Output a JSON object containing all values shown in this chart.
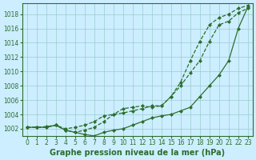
{
  "xlabel": "Graphe pression niveau de la mer (hPa)",
  "bg_color": "#cceeff",
  "grid_color": "#99cccc",
  "line_color": "#2d6e2d",
  "xlim": [
    -0.5,
    23.5
  ],
  "ylim": [
    1001.0,
    1019.5
  ],
  "xticks": [
    0,
    1,
    2,
    3,
    4,
    5,
    6,
    7,
    8,
    9,
    10,
    11,
    12,
    13,
    14,
    15,
    16,
    17,
    18,
    19,
    20,
    21,
    22,
    23
  ],
  "yticks": [
    1002,
    1004,
    1006,
    1008,
    1010,
    1012,
    1014,
    1016,
    1018
  ],
  "series": [
    {
      "x": [
        0,
        1,
        2,
        3,
        4,
        5,
        6,
        7,
        8,
        9,
        10,
        11,
        12,
        13,
        14,
        15,
        16,
        17,
        18,
        19,
        20,
        21,
        22,
        23
      ],
      "y": [
        1002.2,
        1002.2,
        1002.2,
        1002.5,
        1001.8,
        1001.5,
        1001.2,
        1001.0,
        1001.5,
        1001.8,
        1002.0,
        1002.5,
        1003.0,
        1003.5,
        1003.8,
        1004.0,
        1004.5,
        1005.0,
        1006.5,
        1008.0,
        1009.5,
        1011.5,
        1016.0,
        1019.0
      ],
      "linestyle": "-"
    },
    {
      "x": [
        0,
        1,
        2,
        3,
        4,
        5,
        6,
        7,
        8,
        9,
        10,
        11,
        12,
        13,
        14,
        15,
        16,
        17,
        18,
        19,
        20,
        21,
        22,
        23
      ],
      "y": [
        1002.2,
        1002.2,
        1002.3,
        1002.5,
        1002.0,
        1002.2,
        1002.5,
        1003.0,
        1003.8,
        1004.0,
        1004.2,
        1004.5,
        1004.8,
        1005.2,
        1005.2,
        1006.5,
        1008.5,
        1011.5,
        1014.2,
        1016.5,
        1017.5,
        1018.0,
        1018.8,
        1019.2
      ],
      "linestyle": "--"
    },
    {
      "x": [
        0,
        1,
        2,
        3,
        4,
        5,
        6,
        7,
        8,
        9,
        10,
        11,
        12,
        13,
        14,
        15,
        16,
        17,
        18,
        19,
        20,
        21,
        22,
        23
      ],
      "y": [
        1002.2,
        1002.2,
        1002.2,
        1002.5,
        1001.8,
        1001.5,
        1001.8,
        1002.2,
        1003.0,
        1004.0,
        1004.8,
        1005.0,
        1005.2,
        1005.0,
        1005.2,
        1006.5,
        1008.0,
        1009.8,
        1011.5,
        1014.2,
        1016.5,
        1017.0,
        1018.2,
        1018.8
      ],
      "linestyle": "--"
    }
  ],
  "marker": "D",
  "marker_size": 2.0,
  "linewidth": 0.9,
  "tick_fontsize": 5.5,
  "xlabel_fontsize": 7,
  "xlabel_bold": true
}
